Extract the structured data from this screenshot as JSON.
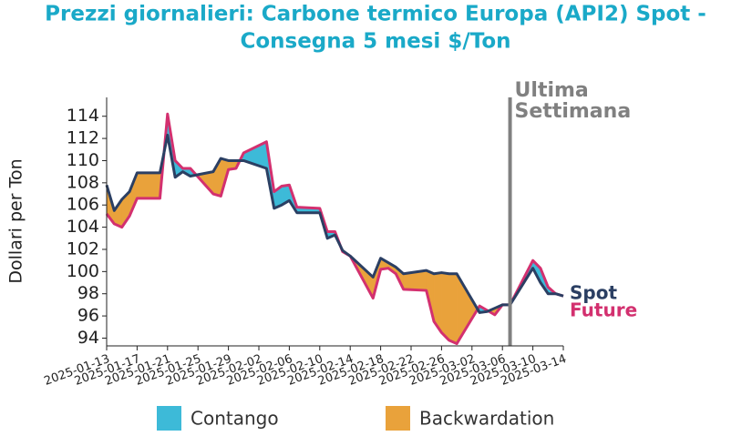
{
  "chart_data": {
    "type": "line",
    "title": [
      "Prezzi giornalieri: Carbone termico Europa (API2) Spot -",
      "Consegna 5 mesi $/Ton"
    ],
    "y_label": "Dollari per Ton",
    "x": [
      "2025-01-13",
      "2025-01-14",
      "2025-01-15",
      "2025-01-16",
      "2025-01-17",
      "2025-01-20",
      "2025-01-21",
      "2025-01-22",
      "2025-01-23",
      "2025-01-24",
      "2025-01-27",
      "2025-01-28",
      "2025-01-29",
      "2025-01-30",
      "2025-01-31",
      "2025-02-03",
      "2025-02-04",
      "2025-02-05",
      "2025-02-06",
      "2025-02-07",
      "2025-02-10",
      "2025-02-11",
      "2025-02-12",
      "2025-02-13",
      "2025-02-14",
      "2025-02-17",
      "2025-02-18",
      "2025-02-19",
      "2025-02-20",
      "2025-02-21",
      "2025-02-24",
      "2025-02-25",
      "2025-02-26",
      "2025-02-27",
      "2025-02-28",
      "2025-03-03",
      "2025-03-04",
      "2025-03-05",
      "2025-03-06",
      "2025-03-07",
      "2025-03-10",
      "2025-03-11",
      "2025-03-12",
      "2025-03-13",
      "2025-03-14"
    ],
    "series": [
      {
        "name": "Spot",
        "color": "#2b3f63",
        "values": [
          107.8,
          105.5,
          106.5,
          107.2,
          108.9,
          108.9,
          112.3,
          108.5,
          109.0,
          108.6,
          109.0,
          110.2,
          110.0,
          110.0,
          110.0,
          109.3,
          105.7,
          106.0,
          106.4,
          105.3,
          105.3,
          103.0,
          103.3,
          101.9,
          101.4,
          99.5,
          101.2,
          100.8,
          100.4,
          99.8,
          100.1,
          99.8,
          99.9,
          99.8,
          99.8,
          96.3,
          96.4,
          96.7,
          97.0,
          97.0,
          100.3,
          99.0,
          98.0,
          98.0,
          97.8
        ]
      },
      {
        "name": "Future",
        "color": "#d3306f",
        "values": [
          105.2,
          104.3,
          104.0,
          105.0,
          106.6,
          106.6,
          114.2,
          110.0,
          109.3,
          109.3,
          107.0,
          106.8,
          109.2,
          109.3,
          110.7,
          111.7,
          107.2,
          107.7,
          107.8,
          105.8,
          105.7,
          103.6,
          103.6,
          101.8,
          101.4,
          97.6,
          100.2,
          100.3,
          99.8,
          98.4,
          98.3,
          95.5,
          94.5,
          93.8,
          93.5,
          96.9,
          96.5,
          96.1,
          97.0,
          97.0,
          101.0,
          100.3,
          98.6,
          98.0,
          97.8
        ]
      }
    ],
    "fills": [
      {
        "name": "Contango",
        "color": "#3dbad8"
      },
      {
        "name": "Backwardation",
        "color": "#e9a23b"
      }
    ],
    "vline": {
      "x": "2025-03-07",
      "label": [
        "Ultima",
        "Settimana"
      ],
      "color": "#808080"
    },
    "xlim": [
      "2025-01-13",
      "2025-03-14"
    ],
    "xticks": [
      "2025-01-13",
      "2025-01-17",
      "2025-01-21",
      "2025-01-25",
      "2025-01-29",
      "2025-02-02",
      "2025-02-06",
      "2025-02-10",
      "2025-02-14",
      "2025-02-18",
      "2025-02-22",
      "2025-02-26",
      "2025-03-02",
      "2025-03-06",
      "2025-03-10",
      "2025-03-14"
    ],
    "ylim": [
      93.3,
      115.7
    ],
    "yticks": [
      94,
      96,
      98,
      100,
      102,
      104,
      106,
      108,
      110,
      112,
      114
    ],
    "title_color": "#1aa9c8"
  }
}
